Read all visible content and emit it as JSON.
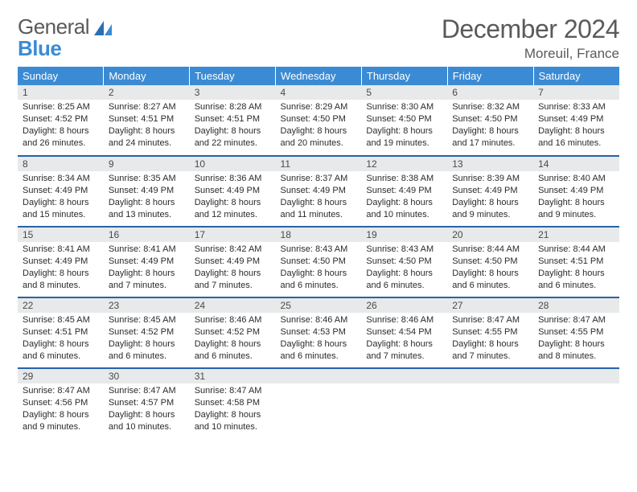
{
  "brand": {
    "word1": "General",
    "word2": "Blue"
  },
  "title": "December 2024",
  "location": "Moreuil, France",
  "header_bg": "#3b8bd4",
  "rule_color": "#2863a8",
  "daynum_bg": "#e7e9ea",
  "weekdays": [
    "Sunday",
    "Monday",
    "Tuesday",
    "Wednesday",
    "Thursday",
    "Friday",
    "Saturday"
  ],
  "weeks": [
    [
      {
        "n": "1",
        "sr": "Sunrise: 8:25 AM",
        "ss": "Sunset: 4:52 PM",
        "d1": "Daylight: 8 hours",
        "d2": "and 26 minutes."
      },
      {
        "n": "2",
        "sr": "Sunrise: 8:27 AM",
        "ss": "Sunset: 4:51 PM",
        "d1": "Daylight: 8 hours",
        "d2": "and 24 minutes."
      },
      {
        "n": "3",
        "sr": "Sunrise: 8:28 AM",
        "ss": "Sunset: 4:51 PM",
        "d1": "Daylight: 8 hours",
        "d2": "and 22 minutes."
      },
      {
        "n": "4",
        "sr": "Sunrise: 8:29 AM",
        "ss": "Sunset: 4:50 PM",
        "d1": "Daylight: 8 hours",
        "d2": "and 20 minutes."
      },
      {
        "n": "5",
        "sr": "Sunrise: 8:30 AM",
        "ss": "Sunset: 4:50 PM",
        "d1": "Daylight: 8 hours",
        "d2": "and 19 minutes."
      },
      {
        "n": "6",
        "sr": "Sunrise: 8:32 AM",
        "ss": "Sunset: 4:50 PM",
        "d1": "Daylight: 8 hours",
        "d2": "and 17 minutes."
      },
      {
        "n": "7",
        "sr": "Sunrise: 8:33 AM",
        "ss": "Sunset: 4:49 PM",
        "d1": "Daylight: 8 hours",
        "d2": "and 16 minutes."
      }
    ],
    [
      {
        "n": "8",
        "sr": "Sunrise: 8:34 AM",
        "ss": "Sunset: 4:49 PM",
        "d1": "Daylight: 8 hours",
        "d2": "and 15 minutes."
      },
      {
        "n": "9",
        "sr": "Sunrise: 8:35 AM",
        "ss": "Sunset: 4:49 PM",
        "d1": "Daylight: 8 hours",
        "d2": "and 13 minutes."
      },
      {
        "n": "10",
        "sr": "Sunrise: 8:36 AM",
        "ss": "Sunset: 4:49 PM",
        "d1": "Daylight: 8 hours",
        "d2": "and 12 minutes."
      },
      {
        "n": "11",
        "sr": "Sunrise: 8:37 AM",
        "ss": "Sunset: 4:49 PM",
        "d1": "Daylight: 8 hours",
        "d2": "and 11 minutes."
      },
      {
        "n": "12",
        "sr": "Sunrise: 8:38 AM",
        "ss": "Sunset: 4:49 PM",
        "d1": "Daylight: 8 hours",
        "d2": "and 10 minutes."
      },
      {
        "n": "13",
        "sr": "Sunrise: 8:39 AM",
        "ss": "Sunset: 4:49 PM",
        "d1": "Daylight: 8 hours",
        "d2": "and 9 minutes."
      },
      {
        "n": "14",
        "sr": "Sunrise: 8:40 AM",
        "ss": "Sunset: 4:49 PM",
        "d1": "Daylight: 8 hours",
        "d2": "and 9 minutes."
      }
    ],
    [
      {
        "n": "15",
        "sr": "Sunrise: 8:41 AM",
        "ss": "Sunset: 4:49 PM",
        "d1": "Daylight: 8 hours",
        "d2": "and 8 minutes."
      },
      {
        "n": "16",
        "sr": "Sunrise: 8:41 AM",
        "ss": "Sunset: 4:49 PM",
        "d1": "Daylight: 8 hours",
        "d2": "and 7 minutes."
      },
      {
        "n": "17",
        "sr": "Sunrise: 8:42 AM",
        "ss": "Sunset: 4:49 PM",
        "d1": "Daylight: 8 hours",
        "d2": "and 7 minutes."
      },
      {
        "n": "18",
        "sr": "Sunrise: 8:43 AM",
        "ss": "Sunset: 4:50 PM",
        "d1": "Daylight: 8 hours",
        "d2": "and 6 minutes."
      },
      {
        "n": "19",
        "sr": "Sunrise: 8:43 AM",
        "ss": "Sunset: 4:50 PM",
        "d1": "Daylight: 8 hours",
        "d2": "and 6 minutes."
      },
      {
        "n": "20",
        "sr": "Sunrise: 8:44 AM",
        "ss": "Sunset: 4:50 PM",
        "d1": "Daylight: 8 hours",
        "d2": "and 6 minutes."
      },
      {
        "n": "21",
        "sr": "Sunrise: 8:44 AM",
        "ss": "Sunset: 4:51 PM",
        "d1": "Daylight: 8 hours",
        "d2": "and 6 minutes."
      }
    ],
    [
      {
        "n": "22",
        "sr": "Sunrise: 8:45 AM",
        "ss": "Sunset: 4:51 PM",
        "d1": "Daylight: 8 hours",
        "d2": "and 6 minutes."
      },
      {
        "n": "23",
        "sr": "Sunrise: 8:45 AM",
        "ss": "Sunset: 4:52 PM",
        "d1": "Daylight: 8 hours",
        "d2": "and 6 minutes."
      },
      {
        "n": "24",
        "sr": "Sunrise: 8:46 AM",
        "ss": "Sunset: 4:52 PM",
        "d1": "Daylight: 8 hours",
        "d2": "and 6 minutes."
      },
      {
        "n": "25",
        "sr": "Sunrise: 8:46 AM",
        "ss": "Sunset: 4:53 PM",
        "d1": "Daylight: 8 hours",
        "d2": "and 6 minutes."
      },
      {
        "n": "26",
        "sr": "Sunrise: 8:46 AM",
        "ss": "Sunset: 4:54 PM",
        "d1": "Daylight: 8 hours",
        "d2": "and 7 minutes."
      },
      {
        "n": "27",
        "sr": "Sunrise: 8:47 AM",
        "ss": "Sunset: 4:55 PM",
        "d1": "Daylight: 8 hours",
        "d2": "and 7 minutes."
      },
      {
        "n": "28",
        "sr": "Sunrise: 8:47 AM",
        "ss": "Sunset: 4:55 PM",
        "d1": "Daylight: 8 hours",
        "d2": "and 8 minutes."
      }
    ],
    [
      {
        "n": "29",
        "sr": "Sunrise: 8:47 AM",
        "ss": "Sunset: 4:56 PM",
        "d1": "Daylight: 8 hours",
        "d2": "and 9 minutes."
      },
      {
        "n": "30",
        "sr": "Sunrise: 8:47 AM",
        "ss": "Sunset: 4:57 PM",
        "d1": "Daylight: 8 hours",
        "d2": "and 10 minutes."
      },
      {
        "n": "31",
        "sr": "Sunrise: 8:47 AM",
        "ss": "Sunset: 4:58 PM",
        "d1": "Daylight: 8 hours",
        "d2": "and 10 minutes."
      },
      {
        "n": "",
        "sr": "",
        "ss": "",
        "d1": "",
        "d2": ""
      },
      {
        "n": "",
        "sr": "",
        "ss": "",
        "d1": "",
        "d2": ""
      },
      {
        "n": "",
        "sr": "",
        "ss": "",
        "d1": "",
        "d2": ""
      },
      {
        "n": "",
        "sr": "",
        "ss": "",
        "d1": "",
        "d2": ""
      }
    ]
  ]
}
